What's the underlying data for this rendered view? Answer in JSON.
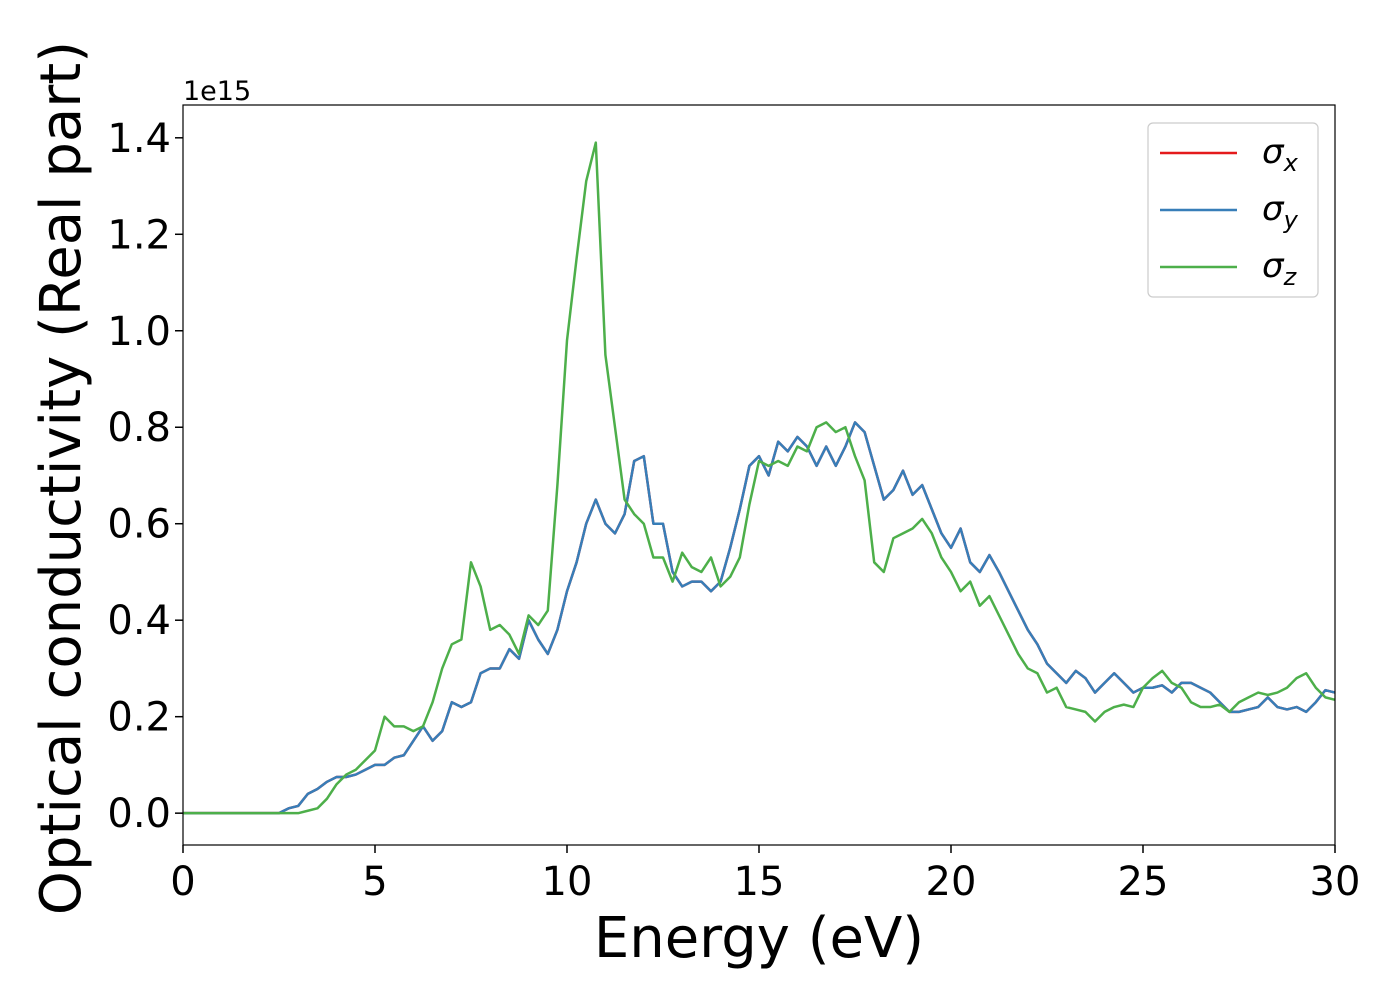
{
  "chart_data": {
    "type": "line",
    "xlabel": "Energy (eV)",
    "ylabel": "Optical conductivity (Real part)",
    "y_offset_label": "1e15",
    "xlim": [
      0,
      30
    ],
    "ylim": [
      -0.066,
      1.468
    ],
    "xticks": [
      0,
      5,
      10,
      15,
      20,
      25,
      30
    ],
    "yticks": [
      {
        "value": 0,
        "label": "0.0"
      },
      0.2,
      0.4,
      0.6,
      0.8,
      {
        "value": 1,
        "label": "1.0"
      },
      1.2,
      1.4
    ],
    "legend": "upper right",
    "x": [
      0,
      0.25,
      0.5,
      0.75,
      1,
      1.25,
      1.5,
      1.75,
      2,
      2.25,
      2.5,
      2.75,
      3,
      3.25,
      3.5,
      3.75,
      4,
      4.25,
      4.5,
      4.75,
      5,
      5.25,
      5.5,
      5.75,
      6,
      6.25,
      6.5,
      6.75,
      7,
      7.25,
      7.5,
      7.75,
      8,
      8.25,
      8.5,
      8.75,
      9,
      9.25,
      9.5,
      9.75,
      10,
      10.25,
      10.5,
      10.75,
      11,
      11.25,
      11.5,
      11.75,
      12,
      12.25,
      12.5,
      12.75,
      13,
      13.25,
      13.5,
      13.75,
      14,
      14.25,
      14.5,
      14.75,
      15,
      15.25,
      15.5,
      15.75,
      16,
      16.25,
      16.5,
      16.75,
      17,
      17.25,
      17.5,
      17.75,
      18,
      18.25,
      18.5,
      18.75,
      19,
      19.25,
      19.5,
      19.75,
      20,
      20.25,
      20.5,
      20.75,
      21,
      21.25,
      21.5,
      21.75,
      22,
      22.25,
      22.5,
      22.75,
      23,
      23.25,
      23.5,
      23.75,
      24,
      24.25,
      24.5,
      24.75,
      25,
      25.25,
      25.5,
      25.75,
      26,
      26.25,
      26.5,
      26.75,
      27,
      27.25,
      27.5,
      27.75,
      28,
      28.25,
      28.5,
      28.75,
      29,
      29.25,
      29.5,
      29.75,
      30
    ],
    "series": [
      {
        "name": "σx",
        "color": "#e41a1c",
        "values": [
          0,
          0,
          0,
          0,
          0,
          0,
          0,
          0,
          0,
          0,
          0,
          0.01,
          0.015,
          0.04,
          0.05,
          0.065,
          0.075,
          0.075,
          0.08,
          0.09,
          0.1,
          0.1,
          0.115,
          0.12,
          0.15,
          0.18,
          0.15,
          0.17,
          0.23,
          0.22,
          0.23,
          0.29,
          0.3,
          0.3,
          0.34,
          0.32,
          0.4,
          0.36,
          0.33,
          0.38,
          0.46,
          0.52,
          0.6,
          0.65,
          0.6,
          0.58,
          0.62,
          0.73,
          0.74,
          0.6,
          0.6,
          0.5,
          0.47,
          0.48,
          0.48,
          0.46,
          0.48,
          0.55,
          0.63,
          0.72,
          0.74,
          0.7,
          0.77,
          0.75,
          0.78,
          0.76,
          0.72,
          0.76,
          0.72,
          0.76,
          0.81,
          0.79,
          0.72,
          0.65,
          0.67,
          0.71,
          0.66,
          0.68,
          0.63,
          0.58,
          0.55,
          0.59,
          0.52,
          0.5,
          0.535,
          0.5,
          0.46,
          0.42,
          0.38,
          0.35,
          0.31,
          0.29,
          0.27,
          0.295,
          0.28,
          0.25,
          0.27,
          0.29,
          0.27,
          0.25,
          0.26,
          0.26,
          0.265,
          0.25,
          0.27,
          0.27,
          0.26,
          0.25,
          0.23,
          0.21,
          0.21,
          0.215,
          0.22,
          0.24,
          0.22,
          0.215,
          0.22,
          0.21,
          0.23,
          0.255,
          0.25
        ]
      },
      {
        "name": "σy",
        "color": "#377eb8",
        "values": [
          0,
          0,
          0,
          0,
          0,
          0,
          0,
          0,
          0,
          0,
          0,
          0.01,
          0.015,
          0.04,
          0.05,
          0.065,
          0.075,
          0.075,
          0.08,
          0.09,
          0.1,
          0.1,
          0.115,
          0.12,
          0.15,
          0.18,
          0.15,
          0.17,
          0.23,
          0.22,
          0.23,
          0.29,
          0.3,
          0.3,
          0.34,
          0.32,
          0.4,
          0.36,
          0.33,
          0.38,
          0.46,
          0.52,
          0.6,
          0.65,
          0.6,
          0.58,
          0.62,
          0.73,
          0.74,
          0.6,
          0.6,
          0.5,
          0.47,
          0.48,
          0.48,
          0.46,
          0.48,
          0.55,
          0.63,
          0.72,
          0.74,
          0.7,
          0.77,
          0.75,
          0.78,
          0.76,
          0.72,
          0.76,
          0.72,
          0.76,
          0.81,
          0.79,
          0.72,
          0.65,
          0.67,
          0.71,
          0.66,
          0.68,
          0.63,
          0.58,
          0.55,
          0.59,
          0.52,
          0.5,
          0.535,
          0.5,
          0.46,
          0.42,
          0.38,
          0.35,
          0.31,
          0.29,
          0.27,
          0.295,
          0.28,
          0.25,
          0.27,
          0.29,
          0.27,
          0.25,
          0.26,
          0.26,
          0.265,
          0.25,
          0.27,
          0.27,
          0.26,
          0.25,
          0.23,
          0.21,
          0.21,
          0.215,
          0.22,
          0.24,
          0.22,
          0.215,
          0.22,
          0.21,
          0.23,
          0.255,
          0.25
        ]
      },
      {
        "name": "σz",
        "color": "#4daf4a",
        "values": [
          0,
          0,
          0,
          0,
          0,
          0,
          0,
          0,
          0,
          0,
          0,
          0,
          0,
          0.005,
          0.01,
          0.03,
          0.06,
          0.08,
          0.09,
          0.11,
          0.13,
          0.2,
          0.18,
          0.18,
          0.17,
          0.18,
          0.23,
          0.3,
          0.35,
          0.36,
          0.52,
          0.47,
          0.38,
          0.39,
          0.37,
          0.33,
          0.41,
          0.39,
          0.42,
          0.68,
          0.98,
          1.15,
          1.31,
          1.39,
          0.95,
          0.8,
          0.65,
          0.62,
          0.6,
          0.53,
          0.53,
          0.48,
          0.54,
          0.51,
          0.5,
          0.53,
          0.47,
          0.49,
          0.53,
          0.64,
          0.73,
          0.72,
          0.73,
          0.72,
          0.76,
          0.75,
          0.8,
          0.81,
          0.79,
          0.8,
          0.74,
          0.69,
          0.52,
          0.5,
          0.57,
          0.58,
          0.59,
          0.61,
          0.58,
          0.53,
          0.5,
          0.46,
          0.48,
          0.43,
          0.45,
          0.41,
          0.37,
          0.33,
          0.3,
          0.29,
          0.25,
          0.26,
          0.22,
          0.215,
          0.21,
          0.19,
          0.21,
          0.22,
          0.225,
          0.22,
          0.26,
          0.28,
          0.295,
          0.27,
          0.26,
          0.23,
          0.22,
          0.22,
          0.225,
          0.21,
          0.23,
          0.24,
          0.25,
          0.245,
          0.25,
          0.26,
          0.28,
          0.29,
          0.26,
          0.24,
          0.235
        ]
      }
    ]
  }
}
